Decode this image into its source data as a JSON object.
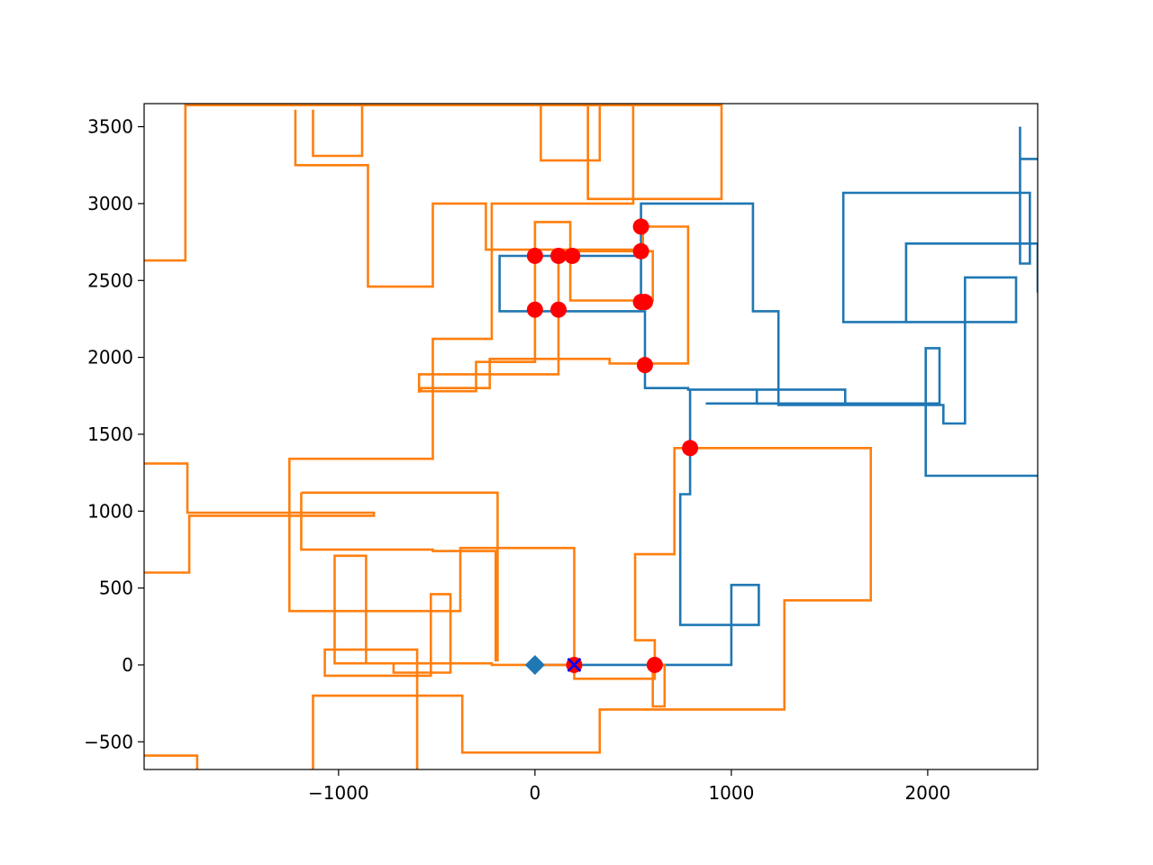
{
  "chart_data": {
    "type": "line",
    "title": "",
    "xlabel": "",
    "ylabel": "",
    "xlim": [
      -1990,
      2560
    ],
    "ylim": [
      -680,
      3650
    ],
    "grid": false,
    "x_ticks": [
      -1000,
      0,
      1000,
      2000
    ],
    "x_tick_labels": [
      "−1000",
      "0",
      "1000",
      "2000"
    ],
    "y_ticks": [
      -500,
      0,
      500,
      1000,
      1500,
      2000,
      2500,
      3000,
      3500
    ],
    "y_tick_labels": [
      "−500",
      "0",
      "500",
      "1000",
      "1500",
      "2000",
      "2500",
      "3000",
      "3500"
    ],
    "colors": {
      "series_1": "#1f77b4",
      "series_2": "#ff7f0e",
      "markers": "#ff0000",
      "cross": "#0000ff"
    },
    "series": [
      {
        "color": "#1f77b4",
        "points": [
          [
            0,
            0
          ],
          [
            1000,
            0
          ],
          [
            1000,
            520
          ],
          [
            1140,
            520
          ],
          [
            1140,
            260
          ],
          [
            740,
            260
          ],
          [
            740,
            1110
          ],
          [
            790,
            1110
          ],
          [
            790,
            1790
          ],
          [
            1130,
            1790
          ],
          [
            1130,
            1700
          ],
          [
            1580,
            1700
          ],
          [
            1580,
            1790
          ],
          [
            780,
            1790
          ],
          [
            780,
            1800
          ],
          [
            560,
            1800
          ],
          [
            560,
            2300
          ],
          [
            540,
            2300
          ],
          [
            540,
            2660
          ],
          [
            -180,
            2660
          ],
          [
            -180,
            2300
          ],
          [
            540,
            2300
          ],
          [
            540,
            3000
          ],
          [
            1110,
            3000
          ],
          [
            1110,
            2300
          ],
          [
            1240,
            2300
          ],
          [
            1240,
            1690
          ],
          [
            2080,
            1690
          ],
          [
            2080,
            1570
          ],
          [
            2190,
            1570
          ],
          [
            2190,
            2520
          ],
          [
            2450,
            2520
          ],
          [
            2450,
            2230
          ],
          [
            1570,
            2230
          ],
          [
            1570,
            3070
          ],
          [
            2520,
            3070
          ],
          [
            2520,
            2610
          ],
          [
            2470,
            2610
          ],
          [
            2470,
            3500
          ],
          [
            2470,
            3290
          ],
          [
            2560,
            3290
          ]
        ]
      },
      {
        "color": "#1f77b4",
        "points": [
          [
            870,
            1700
          ],
          [
            2060,
            1700
          ],
          [
            2060,
            2060
          ],
          [
            1990,
            2060
          ],
          [
            1990,
            1230
          ],
          [
            2560,
            1230
          ]
        ]
      },
      {
        "color": "#1f77b4",
        "points": [
          [
            1890,
            2230
          ],
          [
            1890,
            2740
          ],
          [
            2560,
            2740
          ],
          [
            2560,
            2420
          ]
        ]
      },
      {
        "color": "#ff7f0e",
        "points": [
          [
            200,
            0
          ],
          [
            -220,
            0
          ],
          [
            -220,
            10
          ],
          [
            -1020,
            10
          ],
          [
            -1020,
            710
          ],
          [
            -860,
            710
          ],
          [
            -860,
            10
          ],
          [
            -720,
            10
          ],
          [
            -720,
            -50
          ],
          [
            -430,
            -50
          ],
          [
            -430,
            460
          ],
          [
            -530,
            460
          ],
          [
            -530,
            -70
          ],
          [
            -1070,
            -70
          ],
          [
            -1070,
            100
          ],
          [
            -600,
            100
          ],
          [
            -600,
            -700
          ]
        ]
      },
      {
        "color": "#ff7f0e",
        "points": [
          [
            200,
            0
          ],
          [
            200,
            760
          ],
          [
            -380,
            760
          ],
          [
            -380,
            350
          ],
          [
            -1250,
            350
          ],
          [
            -1250,
            1340
          ],
          [
            -520,
            1340
          ],
          [
            -520,
            2120
          ],
          [
            -220,
            2120
          ],
          [
            -220,
            3000
          ],
          [
            500,
            3000
          ],
          [
            500,
            3640
          ],
          [
            -1780,
            3640
          ],
          [
            -1780,
            2630
          ],
          [
            -1990,
            2630
          ]
        ]
      },
      {
        "color": "#ff7f0e",
        "points": [
          [
            -1990,
            1310
          ],
          [
            -1770,
            1310
          ],
          [
            -1770,
            990
          ],
          [
            -820,
            990
          ],
          [
            -820,
            970
          ],
          [
            -1760,
            970
          ],
          [
            -1760,
            600
          ],
          [
            -1990,
            600
          ]
        ]
      },
      {
        "color": "#ff7f0e",
        "points": [
          [
            -1990,
            -590
          ],
          [
            -1720,
            -590
          ],
          [
            -1720,
            -680
          ]
        ]
      },
      {
        "color": "#ff7f0e",
        "points": [
          [
            -1130,
            -680
          ],
          [
            -1130,
            -200
          ],
          [
            -370,
            -200
          ],
          [
            -370,
            -570
          ],
          [
            330,
            -570
          ],
          [
            330,
            -290
          ],
          [
            1270,
            -290
          ],
          [
            1270,
            420
          ],
          [
            1710,
            420
          ],
          [
            1710,
            1410
          ],
          [
            780,
            1410
          ],
          [
            780,
            1410
          ],
          [
            710,
            1410
          ],
          [
            710,
            720
          ],
          [
            510,
            720
          ],
          [
            510,
            160
          ],
          [
            610,
            160
          ],
          [
            610,
            -90
          ],
          [
            200,
            -90
          ],
          [
            200,
            0
          ]
        ]
      },
      {
        "color": "#ff7f0e",
        "points": [
          [
            600,
            0
          ],
          [
            600,
            -270
          ],
          [
            660,
            -270
          ],
          [
            660,
            0
          ],
          [
            600,
            0
          ]
        ]
      },
      {
        "color": "#ff7f0e",
        "points": [
          [
            -1220,
            3610
          ],
          [
            -1220,
            3250
          ],
          [
            -850,
            3250
          ],
          [
            -850,
            2460
          ],
          [
            -520,
            2460
          ],
          [
            -520,
            3000
          ],
          [
            -250,
            3000
          ],
          [
            -250,
            2700
          ],
          [
            550,
            2700
          ],
          [
            550,
            2850
          ],
          [
            780,
            2850
          ],
          [
            780,
            1960
          ],
          [
            380,
            1960
          ],
          [
            380,
            1990
          ],
          [
            -230,
            1990
          ],
          [
            -230,
            1800
          ],
          [
            -580,
            1800
          ],
          [
            -580,
            1780
          ],
          [
            -300,
            1780
          ],
          [
            -300,
            1970
          ],
          [
            0,
            1970
          ],
          [
            0,
            2880
          ],
          [
            180,
            2880
          ],
          [
            180,
            2370
          ],
          [
            600,
            2370
          ],
          [
            600,
            2690
          ],
          [
            120,
            2690
          ],
          [
            120,
            1890
          ],
          [
            -590,
            1890
          ],
          [
            -590,
            1770
          ]
        ]
      },
      {
        "color": "#ff7f0e",
        "points": [
          [
            -1130,
            3610
          ],
          [
            -1130,
            3310
          ],
          [
            -880,
            3310
          ],
          [
            -880,
            3640
          ]
        ]
      },
      {
        "color": "#ff7f0e",
        "points": [
          [
            30,
            3640
          ],
          [
            30,
            3280
          ],
          [
            330,
            3280
          ],
          [
            330,
            3640
          ]
        ]
      },
      {
        "color": "#ff7f0e",
        "points": [
          [
            270,
            3640
          ],
          [
            270,
            3030
          ],
          [
            950,
            3030
          ],
          [
            950,
            3640
          ],
          [
            470,
            3640
          ]
        ]
      },
      {
        "color": "#ff7f0e",
        "points": [
          [
            -1190,
            1120
          ],
          [
            -190,
            1120
          ],
          [
            -190,
            30
          ],
          [
            -200,
            30
          ],
          [
            -200,
            740
          ],
          [
            -520,
            740
          ],
          [
            -520,
            750
          ],
          [
            -1190,
            750
          ],
          [
            -1190,
            1120
          ]
        ]
      }
    ],
    "red_markers": [
      [
        0,
        2660
      ],
      [
        120,
        2660
      ],
      [
        190,
        2660
      ],
      [
        0,
        2310
      ],
      [
        120,
        2310
      ],
      [
        540,
        2850
      ],
      [
        540,
        2690
      ],
      [
        540,
        2360
      ],
      [
        560,
        2360
      ],
      [
        560,
        1950
      ],
      [
        790,
        1410
      ],
      [
        610,
        0
      ],
      [
        200,
        0
      ]
    ],
    "start_marker": [
      0,
      0
    ],
    "cross_marker": [
      200,
      0
    ]
  }
}
